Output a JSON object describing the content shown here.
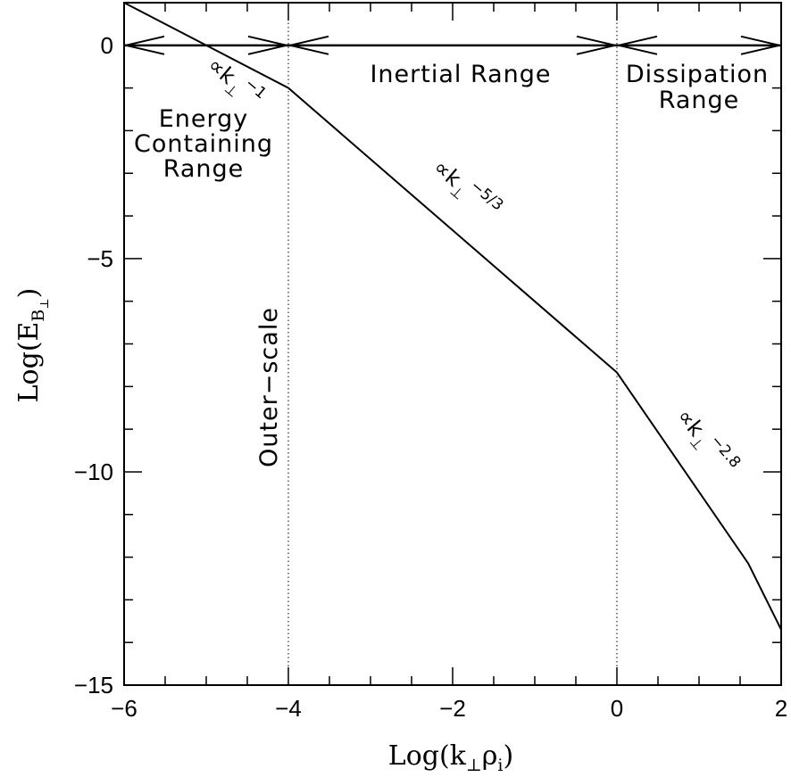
{
  "chart_data": {
    "type": "line",
    "x_label": "Log(k⊥ρi)",
    "y_label": "Log(EB⊥)",
    "xlim": [
      -6,
      2
    ],
    "ylim": [
      -15,
      1
    ],
    "x_ticks": [
      -6,
      -4,
      -2,
      0,
      2
    ],
    "x_tick_labels": [
      "−6",
      "−4",
      "−2",
      "0",
      "2"
    ],
    "y_ticks": [
      -15,
      -10,
      -5,
      0
    ],
    "y_tick_labels": [
      "−15",
      "−10",
      "−5",
      "0"
    ],
    "series": [
      {
        "x": [
          -6.0,
          -4.0,
          0.0,
          1.6,
          2.0
        ],
        "y": [
          1.0,
          -1.0,
          -7.67,
          -12.15,
          -13.7
        ]
      }
    ],
    "reference_line_y": 0,
    "vertical_lines_x": [
      -4,
      0
    ],
    "range_arrows": [
      {
        "from": -6,
        "to": -4
      },
      {
        "from": -4,
        "to": 0
      },
      {
        "from": 0,
        "to": 2
      }
    ],
    "region_labels": {
      "energy": [
        "Energy",
        "Containing",
        "Range"
      ],
      "inertial": [
        "Inertial Range"
      ],
      "dissipation": [
        "Dissipation",
        "Range"
      ],
      "outer_scale": "Outer−scale"
    },
    "slope_labels": [
      {
        "base": "∝k",
        "sub": "⊥",
        "sup": "−1"
      },
      {
        "base": "∝k",
        "sub": "⊥",
        "sup": "−5/3"
      },
      {
        "base": "∝k",
        "sub": "⊥",
        "sup": "−2.8"
      }
    ],
    "grid": false
  }
}
